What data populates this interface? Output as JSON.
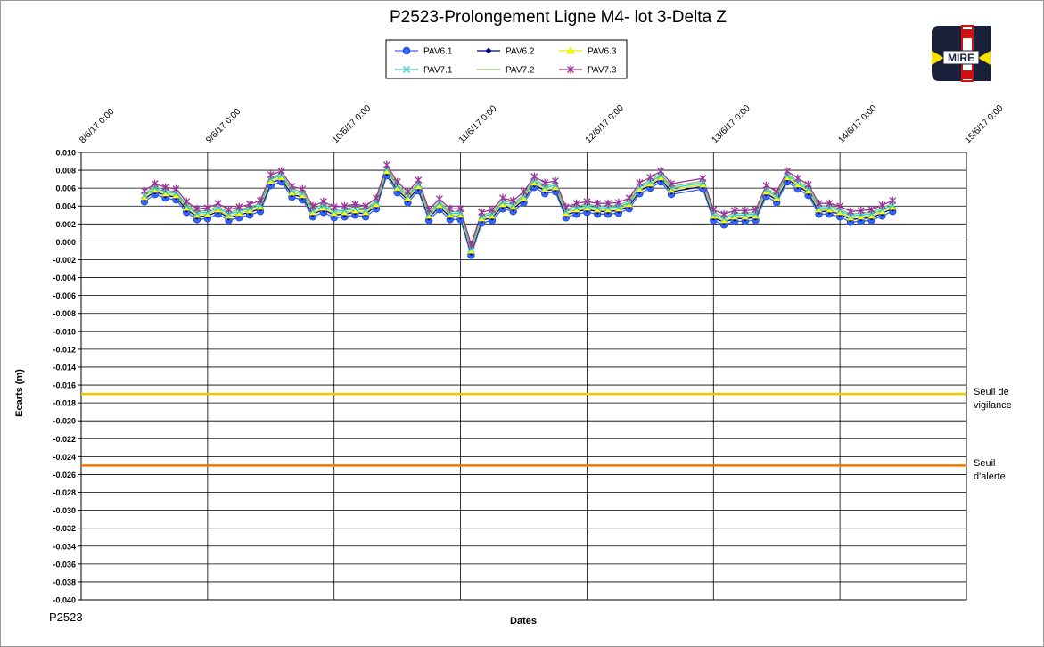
{
  "chart_data": {
    "type": "line",
    "title": "P2523-Prolongement  Ligne  M4- lot 3-Delta Z",
    "xlabel": "Dates",
    "ylabel": "Ecarts (m)",
    "footer": "P2523",
    "logo_text": "MIRE",
    "grid": true,
    "xlim": [
      "2017-06-08T00:00",
      "2017-06-15T00:00"
    ],
    "xticks": [
      {
        "value": "2017-06-08T00:00",
        "label": "8/6/17 0:00"
      },
      {
        "value": "2017-06-09T00:00",
        "label": "9/6/17 0:00"
      },
      {
        "value": "2017-06-10T00:00",
        "label": "10/6/17 0:00"
      },
      {
        "value": "2017-06-11T00:00",
        "label": "11/6/17 0:00"
      },
      {
        "value": "2017-06-12T00:00",
        "label": "12/6/17 0:00"
      },
      {
        "value": "2017-06-13T00:00",
        "label": "13/6/17 0:00"
      },
      {
        "value": "2017-06-14T00:00",
        "label": "14/6/17 0:00"
      },
      {
        "value": "2017-06-15T00:00",
        "label": "15/6/17 0:00"
      }
    ],
    "ylim": [
      -0.04,
      0.01
    ],
    "yticks": [
      {
        "value": 0.01,
        "label": "0.010"
      },
      {
        "value": 0.008,
        "label": "0.008"
      },
      {
        "value": 0.006,
        "label": "0.006"
      },
      {
        "value": 0.004,
        "label": "0.004"
      },
      {
        "value": 0.002,
        "label": "0.002"
      },
      {
        "value": 0,
        "label": "0.000"
      },
      {
        "value": -0.002,
        "label": "-0.002"
      },
      {
        "value": -0.004,
        "label": "-0.004"
      },
      {
        "value": -0.006,
        "label": "-0.006"
      },
      {
        "value": -0.008,
        "label": "-0.008"
      },
      {
        "value": -0.01,
        "label": "-0.010"
      },
      {
        "value": -0.012,
        "label": "-0.012"
      },
      {
        "value": -0.014,
        "label": "-0.014"
      },
      {
        "value": -0.016,
        "label": "-0.016"
      },
      {
        "value": -0.018,
        "label": "-0.018"
      },
      {
        "value": -0.02,
        "label": "-0.020"
      },
      {
        "value": -0.022,
        "label": "-0.022"
      },
      {
        "value": -0.024,
        "label": "-0.024"
      },
      {
        "value": -0.026,
        "label": "-0.026"
      },
      {
        "value": -0.028,
        "label": "-0.028"
      },
      {
        "value": -0.03,
        "label": "-0.030"
      },
      {
        "value": -0.032,
        "label": "-0.032"
      },
      {
        "value": -0.034,
        "label": "-0.034"
      },
      {
        "value": -0.036,
        "label": "-0.036"
      },
      {
        "value": -0.038,
        "label": "-0.038"
      },
      {
        "value": -0.04,
        "label": "-0.040"
      }
    ],
    "thresholds": [
      {
        "label": "Seuil de vigilance",
        "value": -0.017,
        "color": "#f5c400"
      },
      {
        "label": "Seuil d'alerte",
        "value": -0.025,
        "color": "#f07800"
      }
    ],
    "x": [
      "2017-06-08T12:00",
      "2017-06-08T14:00",
      "2017-06-08T16:00",
      "2017-06-08T18:00",
      "2017-06-08T20:00",
      "2017-06-08T22:00",
      "2017-06-09T00:00",
      "2017-06-09T02:00",
      "2017-06-09T04:00",
      "2017-06-09T06:00",
      "2017-06-09T08:00",
      "2017-06-09T10:00",
      "2017-06-09T12:00",
      "2017-06-09T14:00",
      "2017-06-09T16:00",
      "2017-06-09T18:00",
      "2017-06-09T20:00",
      "2017-06-09T22:00",
      "2017-06-10T00:00",
      "2017-06-10T02:00",
      "2017-06-10T04:00",
      "2017-06-10T06:00",
      "2017-06-10T08:00",
      "2017-06-10T10:00",
      "2017-06-10T12:00",
      "2017-06-10T14:00",
      "2017-06-10T16:00",
      "2017-06-10T18:00",
      "2017-06-10T20:00",
      "2017-06-10T22:00",
      "2017-06-11T00:00",
      "2017-06-11T02:00",
      "2017-06-11T04:00",
      "2017-06-11T06:00",
      "2017-06-11T08:00",
      "2017-06-11T10:00",
      "2017-06-11T12:00",
      "2017-06-11T14:00",
      "2017-06-11T16:00",
      "2017-06-11T18:00",
      "2017-06-11T20:00",
      "2017-06-11T22:00",
      "2017-06-12T00:00",
      "2017-06-12T02:00",
      "2017-06-12T04:00",
      "2017-06-12T06:00",
      "2017-06-12T08:00",
      "2017-06-12T10:00",
      "2017-06-12T12:00",
      "2017-06-12T14:00",
      "2017-06-12T16:00",
      "2017-06-12T22:00",
      "2017-06-13T00:00",
      "2017-06-13T02:00",
      "2017-06-13T04:00",
      "2017-06-13T06:00",
      "2017-06-13T08:00",
      "2017-06-13T10:00",
      "2017-06-13T12:00",
      "2017-06-13T14:00",
      "2017-06-13T16:00",
      "2017-06-13T18:00",
      "2017-06-13T20:00",
      "2017-06-13T22:00",
      "2017-06-14T00:00",
      "2017-06-14T02:00",
      "2017-06-14T04:00",
      "2017-06-14T06:00",
      "2017-06-14T08:00",
      "2017-06-14T10:00"
    ],
    "series": [
      {
        "name": "PAV6.1",
        "color": "#3366ff",
        "marker": "circle",
        "values": [
          0.0045,
          0.0053,
          0.0049,
          0.0047,
          0.0033,
          0.0025,
          0.0026,
          0.0031,
          0.0024,
          0.0027,
          0.003,
          0.0034,
          0.0063,
          0.0067,
          0.005,
          0.0047,
          0.0028,
          0.0033,
          0.0027,
          0.0028,
          0.003,
          0.0028,
          0.0037,
          0.0074,
          0.0055,
          0.0044,
          0.0057,
          0.0024,
          0.0036,
          0.0025,
          0.0025,
          -0.0015,
          0.0021,
          0.0024,
          0.0037,
          0.0034,
          0.0044,
          0.0061,
          0.0054,
          0.0056,
          0.0027,
          0.0031,
          0.0033,
          0.0031,
          0.0031,
          0.0032,
          0.0037,
          0.0054,
          0.006,
          0.0067,
          0.0053,
          0.0059,
          0.0024,
          0.0019,
          0.0023,
          0.0023,
          0.0024,
          0.0051,
          0.0044,
          0.0067,
          0.0059,
          0.0052,
          0.0031,
          0.0031,
          0.0028,
          0.0022,
          0.0023,
          0.0024,
          0.0029,
          0.0034
        ]
      },
      {
        "name": "PAV6.2",
        "color": "#000080",
        "marker": "diamond",
        "values": [
          0.0048,
          0.0056,
          0.0052,
          0.005,
          0.0036,
          0.0028,
          0.0029,
          0.0034,
          0.0027,
          0.003,
          0.0033,
          0.0037,
          0.0066,
          0.007,
          0.0053,
          0.005,
          0.0031,
          0.0036,
          0.003,
          0.0031,
          0.0033,
          0.0031,
          0.004,
          0.0077,
          0.0058,
          0.0047,
          0.006,
          0.0027,
          0.0039,
          0.0028,
          0.0028,
          -0.0012,
          0.0024,
          0.0027,
          0.004,
          0.0037,
          0.0047,
          0.0064,
          0.0057,
          0.0059,
          0.003,
          0.0034,
          0.0036,
          0.0034,
          0.0034,
          0.0035,
          0.004,
          0.0057,
          0.0063,
          0.007,
          0.0056,
          0.0062,
          0.0027,
          0.0022,
          0.0026,
          0.0026,
          0.0027,
          0.0054,
          0.0047,
          0.007,
          0.0062,
          0.0055,
          0.0034,
          0.0034,
          0.0031,
          0.0025,
          0.0026,
          0.0027,
          0.0032,
          0.0037
        ]
      },
      {
        "name": "PAV6.3",
        "color": "#ffff00",
        "marker": "triangle",
        "values": [
          0.005,
          0.0058,
          0.0054,
          0.0052,
          0.0038,
          0.003,
          0.0031,
          0.0036,
          0.0029,
          0.0032,
          0.0035,
          0.0039,
          0.0068,
          0.0072,
          0.0055,
          0.0052,
          0.0033,
          0.0038,
          0.0032,
          0.0033,
          0.0035,
          0.0033,
          0.0042,
          0.0079,
          0.006,
          0.0049,
          0.0062,
          0.0029,
          0.0041,
          0.003,
          0.003,
          -0.001,
          0.0026,
          0.0029,
          0.0042,
          0.0039,
          0.0049,
          0.0066,
          0.0059,
          0.0061,
          0.0032,
          0.0036,
          0.0038,
          0.0036,
          0.0036,
          0.0037,
          0.0042,
          0.0059,
          0.0065,
          0.0072,
          0.0058,
          0.0064,
          0.0029,
          0.0024,
          0.0028,
          0.0028,
          0.0029,
          0.0056,
          0.0049,
          0.0072,
          0.0064,
          0.0057,
          0.0036,
          0.0036,
          0.0033,
          0.0027,
          0.0028,
          0.0029,
          0.0034,
          0.0039
        ]
      },
      {
        "name": "PAV7.1",
        "color": "#33cccc",
        "marker": "cross",
        "values": [
          0.0052,
          0.006,
          0.0056,
          0.0054,
          0.004,
          0.0032,
          0.0033,
          0.0038,
          0.0031,
          0.0034,
          0.0037,
          0.0041,
          0.007,
          0.0074,
          0.0057,
          0.0054,
          0.0035,
          0.004,
          0.0034,
          0.0035,
          0.0037,
          0.0035,
          0.0044,
          0.0081,
          0.0062,
          0.0051,
          0.0064,
          0.0031,
          0.0043,
          0.0032,
          0.0032,
          -0.0008,
          0.0028,
          0.0031,
          0.0044,
          0.0041,
          0.0051,
          0.0068,
          0.0061,
          0.0063,
          0.0034,
          0.0038,
          0.004,
          0.0038,
          0.0038,
          0.0039,
          0.0044,
          0.0061,
          0.0067,
          0.0074,
          0.006,
          0.0066,
          0.0031,
          0.0026,
          0.003,
          0.003,
          0.0031,
          0.0058,
          0.0051,
          0.0074,
          0.0066,
          0.0059,
          0.0038,
          0.0038,
          0.0035,
          0.0029,
          0.003,
          0.0031,
          0.0036,
          0.0041
        ]
      },
      {
        "name": "PAV7.2",
        "color": "#8fbc6a",
        "marker": "none",
        "values": [
          0.0054,
          0.0062,
          0.0058,
          0.0056,
          0.0042,
          0.0034,
          0.0035,
          0.004,
          0.0033,
          0.0036,
          0.0039,
          0.0043,
          0.0072,
          0.0076,
          0.0059,
          0.0056,
          0.0037,
          0.0042,
          0.0036,
          0.0037,
          0.0039,
          0.0037,
          0.0046,
          0.0083,
          0.0064,
          0.0053,
          0.0066,
          0.0033,
          0.0045,
          0.0034,
          0.0034,
          -0.0006,
          0.003,
          0.0033,
          0.0046,
          0.0043,
          0.0053,
          0.007,
          0.0063,
          0.0065,
          0.0036,
          0.004,
          0.0042,
          0.004,
          0.004,
          0.0041,
          0.0046,
          0.0063,
          0.0069,
          0.0076,
          0.0062,
          0.0068,
          0.0033,
          0.0028,
          0.0032,
          0.0032,
          0.0033,
          0.006,
          0.0053,
          0.0076,
          0.0068,
          0.0061,
          0.004,
          0.004,
          0.0037,
          0.0031,
          0.0032,
          0.0033,
          0.0038,
          0.0043
        ]
      },
      {
        "name": "PAV7.3",
        "color": "#993399",
        "marker": "star",
        "values": [
          0.0057,
          0.0065,
          0.0061,
          0.0059,
          0.0045,
          0.0037,
          0.0038,
          0.0043,
          0.0036,
          0.0039,
          0.0042,
          0.0046,
          0.0075,
          0.0079,
          0.0062,
          0.0059,
          0.004,
          0.0045,
          0.0039,
          0.004,
          0.0042,
          0.004,
          0.0049,
          0.0086,
          0.0067,
          0.0056,
          0.0069,
          0.0036,
          0.0048,
          0.0037,
          0.0037,
          -0.0003,
          0.0033,
          0.0036,
          0.0049,
          0.0046,
          0.0056,
          0.0073,
          0.0066,
          0.0068,
          0.0039,
          0.0043,
          0.0045,
          0.0043,
          0.0043,
          0.0044,
          0.0049,
          0.0066,
          0.0072,
          0.0079,
          0.0065,
          0.0071,
          0.0036,
          0.0031,
          0.0035,
          0.0035,
          0.0036,
          0.0063,
          0.0056,
          0.0079,
          0.0071,
          0.0064,
          0.0043,
          0.0043,
          0.004,
          0.0034,
          0.0035,
          0.0036,
          0.0041,
          0.0046
        ]
      }
    ]
  }
}
